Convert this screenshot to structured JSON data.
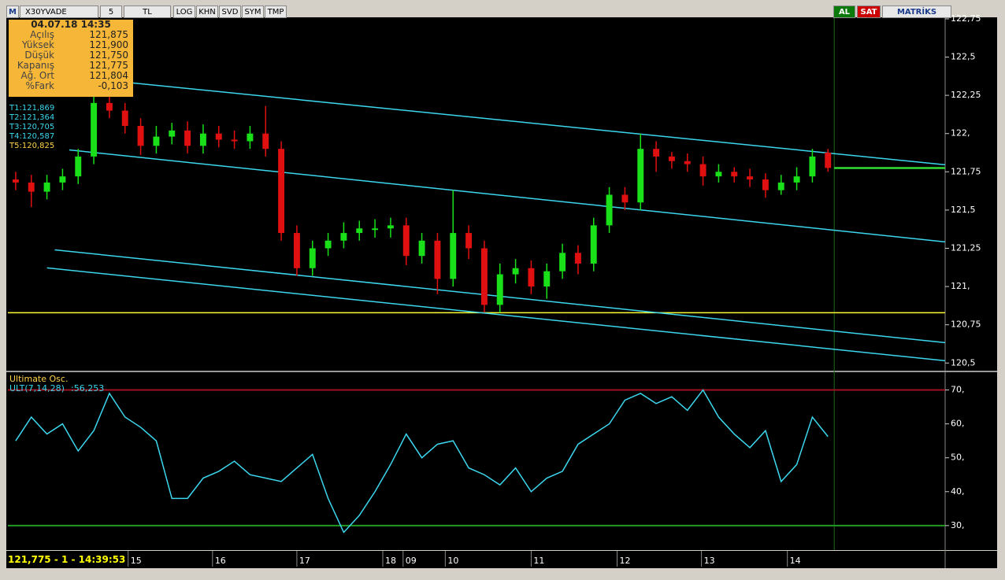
{
  "toolbar": {
    "logo": "M",
    "symbol": "X30YVADE",
    "period": "5",
    "currency": "TL",
    "buttons": [
      "LOG",
      "KHN",
      "SVD",
      "SYM",
      "TMP"
    ],
    "buy": "AL",
    "sell": "SAT",
    "brand": "MATRİKS"
  },
  "info_box": {
    "datetime": "04.07.18 14:35",
    "rows": [
      [
        "Açılış",
        "121,875"
      ],
      [
        "Yüksek",
        "121,900"
      ],
      [
        "Düşük",
        "121,750"
      ],
      [
        "Kapanış",
        "121,775"
      ],
      [
        "Ağ. Ort",
        "121,804"
      ],
      [
        "%Fark",
        "-0,103"
      ]
    ]
  },
  "targets": [
    "T1:121,869",
    "T2:121,364",
    "T3:120,705",
    "T4:120,587",
    "T5:120,825"
  ],
  "status": "121,775 - 1 - 14:39:53",
  "chart_data": [
    {
      "type": "candlestick",
      "up_color": "#19e019",
      "down_color": "#e01010",
      "open": [
        121.7,
        121.68,
        121.62,
        121.68,
        121.72,
        121.85,
        122.2,
        122.15,
        122.05,
        121.92,
        121.98,
        122.02,
        121.92,
        122.0,
        121.96,
        121.95,
        122.0,
        121.9,
        121.35,
        121.12,
        121.25,
        121.3,
        121.35,
        121.38,
        121.38,
        121.4,
        121.2,
        121.3,
        121.05,
        121.35,
        121.25,
        120.88,
        121.08,
        121.12,
        121.0,
        121.1,
        121.22,
        121.15,
        121.4,
        121.6,
        121.55,
        121.9,
        121.85,
        121.82,
        121.8,
        121.72,
        121.75,
        121.72,
        121.7,
        121.63,
        121.68,
        121.72,
        121.875
      ],
      "high": [
        121.75,
        121.73,
        121.73,
        121.77,
        121.9,
        122.25,
        122.25,
        122.2,
        122.1,
        122.05,
        122.07,
        122.08,
        122.06,
        122.05,
        122.02,
        122.05,
        122.18,
        121.95,
        121.4,
        121.3,
        121.35,
        121.42,
        121.43,
        121.44,
        121.45,
        121.45,
        121.35,
        121.35,
        121.63,
        121.4,
        121.3,
        121.15,
        121.18,
        121.17,
        121.15,
        121.28,
        121.27,
        121.45,
        121.65,
        121.65,
        122.0,
        121.95,
        121.88,
        121.87,
        121.85,
        121.8,
        121.78,
        121.77,
        121.74,
        121.73,
        121.78,
        121.9,
        121.9
      ],
      "low": [
        121.63,
        121.52,
        121.57,
        121.63,
        121.67,
        121.8,
        122.1,
        122.0,
        121.86,
        121.87,
        121.93,
        121.87,
        121.87,
        121.91,
        121.9,
        121.9,
        121.85,
        121.3,
        121.07,
        121.07,
        121.2,
        121.25,
        121.3,
        121.32,
        121.32,
        121.14,
        121.15,
        120.95,
        121.0,
        121.18,
        120.83,
        120.83,
        121.02,
        120.95,
        120.92,
        121.05,
        121.08,
        121.1,
        121.35,
        121.5,
        121.5,
        121.75,
        121.77,
        121.75,
        121.66,
        121.68,
        121.68,
        121.65,
        121.58,
        121.6,
        121.63,
        121.68,
        121.75
      ],
      "close": [
        121.68,
        121.62,
        121.68,
        121.72,
        121.85,
        122.2,
        122.15,
        122.05,
        121.92,
        121.98,
        122.02,
        121.92,
        122.0,
        121.96,
        121.95,
        122.0,
        121.9,
        121.35,
        121.12,
        121.25,
        121.3,
        121.35,
        121.38,
        121.38,
        121.4,
        121.2,
        121.3,
        121.05,
        121.35,
        121.25,
        120.88,
        121.08,
        121.12,
        121.0,
        121.1,
        121.22,
        121.15,
        121.4,
        121.6,
        121.55,
        121.9,
        121.85,
        121.82,
        121.8,
        121.72,
        121.75,
        121.72,
        121.7,
        121.63,
        121.68,
        121.72,
        121.85,
        121.775
      ],
      "xlim": [
        -0.5,
        59.5
      ],
      "ylim": [
        120.45,
        122.76
      ],
      "yticks": [
        {
          "value": 122.75,
          "label": "122,75"
        },
        {
          "value": 122.5,
          "label": "122,5"
        },
        {
          "value": 122.25,
          "label": "122,25"
        },
        {
          "value": 122,
          "label": "122,"
        },
        {
          "value": 121.75,
          "label": "121,75"
        },
        {
          "value": 121.5,
          "label": "121,5"
        },
        {
          "value": 121.25,
          "label": "121,25"
        },
        {
          "value": 121,
          "label": "121,"
        },
        {
          "value": 120.75,
          "label": "120,75"
        },
        {
          "value": 120.5,
          "label": "120,5"
        }
      ],
      "xticks": [
        {
          "value": 7.2,
          "label": "15"
        },
        {
          "value": 12.6,
          "label": "16"
        },
        {
          "value": 18.0,
          "label": "17"
        },
        {
          "value": 23.5,
          "label": "18"
        },
        {
          "value": 24.8,
          "label": "09"
        },
        {
          "value": 27.5,
          "label": "10"
        },
        {
          "value": 33.0,
          "label": "11"
        },
        {
          "value": 38.5,
          "label": "12"
        },
        {
          "value": 43.9,
          "label": "13"
        },
        {
          "value": 49.4,
          "label": "14"
        }
      ],
      "trend_lines": [
        {
          "color": "#3cd7ee",
          "x": [
            5.05,
            59.5
          ],
          "y": [
            122.356,
            121.796
          ]
        },
        {
          "color": "#3cd7ee",
          "x": [
            3.43,
            59.5
          ],
          "y": [
            121.893,
            121.292
          ]
        },
        {
          "color": "#3cd7ee",
          "x": [
            2.5,
            59.5
          ],
          "y": [
            121.24,
            120.633
          ]
        },
        {
          "color": "#3cd7ee",
          "x": [
            2.0,
            59.5
          ],
          "y": [
            121.122,
            120.515
          ]
        }
      ],
      "levels": [
        {
          "color": "#ffff33",
          "value": 120.829,
          "x": [
            -0.5,
            59.5
          ]
        },
        {
          "color": "#33dd33",
          "value": 121.775,
          "x": [
            52.4,
            59.5
          ]
        }
      ],
      "cursor_x": 52.4
    },
    {
      "type": "line",
      "title": "Ultimate Osc.",
      "legend": "ULT(7,14,28)",
      "current_value_label": ":56,253",
      "color": "#3cd7ee",
      "values": [
        55,
        62,
        57,
        60,
        52,
        58,
        69,
        62,
        59,
        55,
        38,
        38,
        44,
        46,
        49,
        45,
        44,
        43,
        47,
        51,
        38,
        28,
        33,
        40,
        48,
        57,
        50,
        54,
        55,
        47,
        45,
        42,
        47,
        40,
        44,
        46,
        54,
        57,
        60,
        67,
        69,
        66,
        68,
        64,
        70,
        62,
        57,
        53,
        58,
        43,
        48,
        62,
        56.253
      ],
      "xlim": [
        -0.5,
        59.5
      ],
      "ylim": [
        23,
        75
      ],
      "yticks": [
        {
          "value": 70,
          "label": "70,"
        },
        {
          "value": 60,
          "label": "60,"
        },
        {
          "value": 50,
          "label": "50,"
        },
        {
          "value": 40,
          "label": "40,"
        },
        {
          "value": 30,
          "label": "30,"
        }
      ],
      "levels": [
        {
          "color": "#a01020",
          "value": 70
        },
        {
          "color": "#229922",
          "value": 30
        }
      ]
    }
  ]
}
